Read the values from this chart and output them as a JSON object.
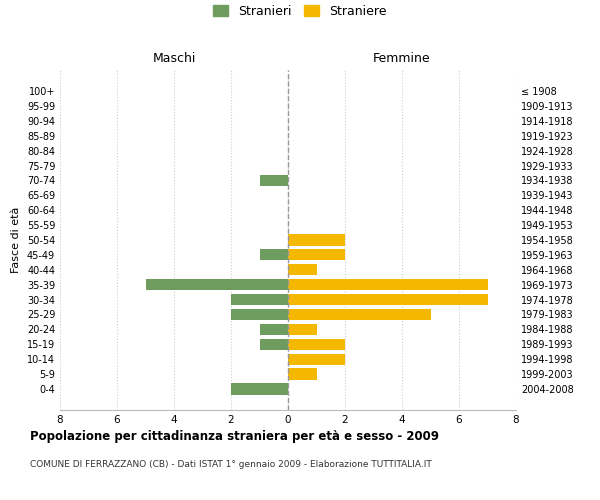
{
  "age_groups": [
    "100+",
    "95-99",
    "90-94",
    "85-89",
    "80-84",
    "75-79",
    "70-74",
    "65-69",
    "60-64",
    "55-59",
    "50-54",
    "45-49",
    "40-44",
    "35-39",
    "30-34",
    "25-29",
    "20-24",
    "15-19",
    "10-14",
    "5-9",
    "0-4"
  ],
  "birth_years": [
    "≤ 1908",
    "1909-1913",
    "1914-1918",
    "1919-1923",
    "1924-1928",
    "1929-1933",
    "1934-1938",
    "1939-1943",
    "1944-1948",
    "1949-1953",
    "1954-1958",
    "1959-1963",
    "1964-1968",
    "1969-1973",
    "1974-1978",
    "1979-1983",
    "1984-1988",
    "1989-1993",
    "1994-1998",
    "1999-2003",
    "2004-2008"
  ],
  "maschi": [
    0,
    0,
    0,
    0,
    0,
    0,
    1,
    0,
    0,
    0,
    0,
    1,
    0,
    5,
    2,
    2,
    1,
    1,
    0,
    0,
    2
  ],
  "femmine": [
    0,
    0,
    0,
    0,
    0,
    0,
    0,
    0,
    0,
    0,
    2,
    2,
    1,
    7,
    7,
    5,
    1,
    2,
    2,
    1,
    0
  ],
  "maschi_color": "#6e9b5e",
  "femmine_color": "#f5b800",
  "background_color": "#ffffff",
  "grid_color": "#cccccc",
  "title": "Popolazione per cittadinanza straniera per età e sesso - 2009",
  "subtitle": "COMUNE DI FERRAZZANO (CB) - Dati ISTAT 1° gennaio 2009 - Elaborazione TUTTITALIA.IT",
  "ylabel_left": "Fasce di età",
  "xlabel_maschi": "Maschi",
  "xlabel_femmine": "Femmine",
  "legend_maschi": "Stranieri",
  "legend_femmine": "Straniere",
  "xlim": 8,
  "bar_height": 0.75
}
